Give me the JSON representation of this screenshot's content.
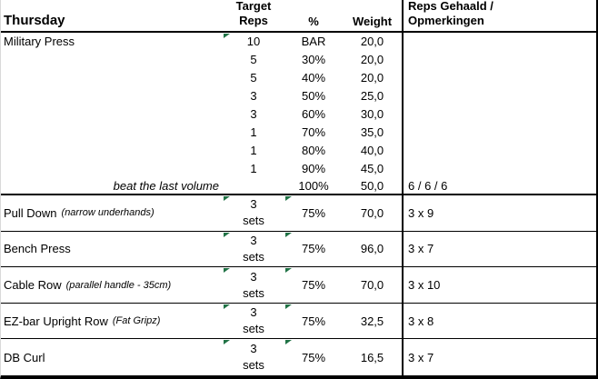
{
  "sheet": {
    "title": "Thursday",
    "headers": {
      "target_reps_line1": "Target",
      "target_reps_line2": "Reps",
      "percent": "%",
      "weight": "Weight",
      "notes_line1": "Reps Gehaald /",
      "notes_line2": "Opmerkingen"
    },
    "warmup": [
      {
        "exercise": "Military Press",
        "reps": "10",
        "percent": "BAR",
        "weight": "20,0",
        "notes": ""
      },
      {
        "exercise": "",
        "reps": "5",
        "percent": "30%",
        "weight": "20,0",
        "notes": ""
      },
      {
        "exercise": "",
        "reps": "5",
        "percent": "40%",
        "weight": "20,0",
        "notes": ""
      },
      {
        "exercise": "",
        "reps": "3",
        "percent": "50%",
        "weight": "25,0",
        "notes": ""
      },
      {
        "exercise": "",
        "reps": "3",
        "percent": "60%",
        "weight": "30,0",
        "notes": ""
      },
      {
        "exercise": "",
        "reps": "1",
        "percent": "70%",
        "weight": "35,0",
        "notes": ""
      },
      {
        "exercise": "",
        "reps": "1",
        "percent": "80%",
        "weight": "40,0",
        "notes": ""
      },
      {
        "exercise": "",
        "reps": "1",
        "percent": "90%",
        "weight": "45,0",
        "notes": ""
      },
      {
        "exercise": "beat the last volume",
        "reps": "",
        "percent": "100%",
        "weight": "50,0",
        "notes": "6 / 6 / 6"
      }
    ],
    "exercises": [
      {
        "name": "Pull Down",
        "note": "(narrow underhands)",
        "sets_line1": "3",
        "sets_line2": "sets",
        "percent": "75%",
        "weight": "70,0",
        "result": "3 x 9"
      },
      {
        "name": "Bench Press",
        "note": "",
        "sets_line1": "3",
        "sets_line2": "sets",
        "percent": "75%",
        "weight": "96,0",
        "result": "3 x 7"
      },
      {
        "name": "Cable Row",
        "note": "(parallel handle - 35cm)",
        "sets_line1": "3",
        "sets_line2": "sets",
        "percent": "75%",
        "weight": "70,0",
        "result": "3 x 10"
      },
      {
        "name": "EZ-bar Upright Row",
        "note": "(Fat Gripz)",
        "sets_line1": "3",
        "sets_line2": "sets",
        "percent": "75%",
        "weight": "32,5",
        "result": "3 x 8"
      },
      {
        "name": "DB Curl",
        "note": "",
        "sets_line1": "3",
        "sets_line2": "sets",
        "percent": "75%",
        "weight": "16,5",
        "result": "3 x 7"
      }
    ],
    "colors": {
      "flag_green": "#217346",
      "border": "#000000",
      "grid_gray": "#d9d9d9"
    }
  }
}
